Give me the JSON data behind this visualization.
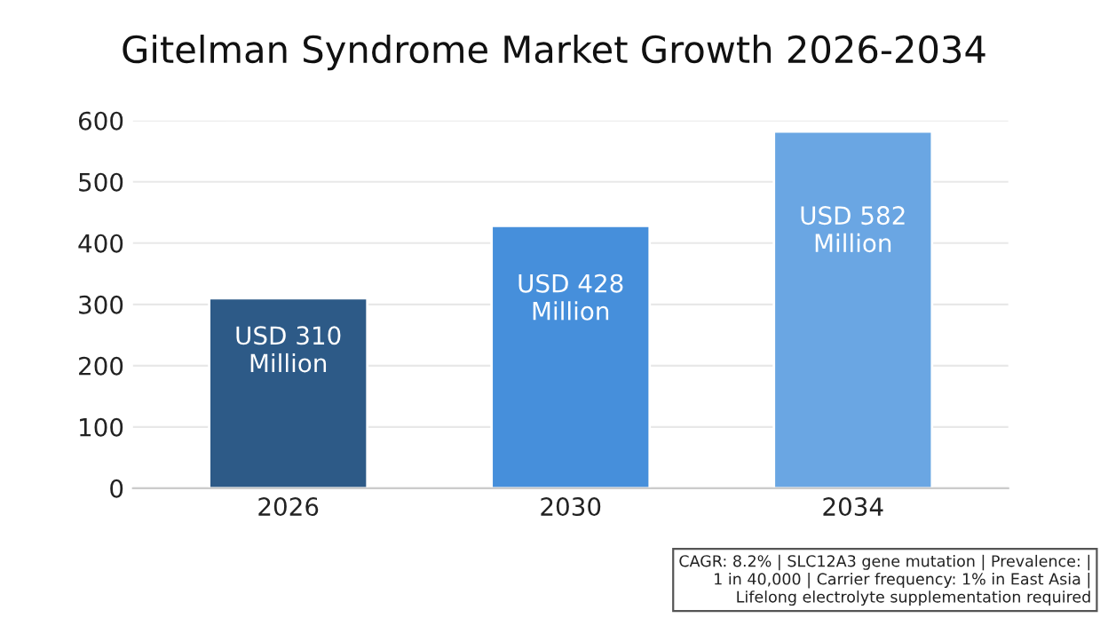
{
  "chart_data": {
    "type": "bar",
    "title": "Gitelman Syndrome Market Growth 2026-2034",
    "categories": [
      "2026",
      "2030",
      "2034"
    ],
    "values": [
      310,
      428,
      582
    ],
    "colors": [
      "#2d5a87",
      "#468fdb",
      "#6aa6e3"
    ],
    "value_labels": [
      "USD 310\nMillion",
      "USD 428\nMillion",
      "USD 582\nMillion"
    ],
    "ylim": [
      0,
      600
    ],
    "yticks": [
      0,
      100,
      200,
      300,
      400,
      500,
      600
    ],
    "grid": "y",
    "annotations": [
      "CAGR: 8.2% | SLC12A3 gene mutation | Prevalence: |\n1 in 40,000 | Carrier frequency: 1% in East Asia |\nLifelong electrolyte supplementation required"
    ]
  }
}
